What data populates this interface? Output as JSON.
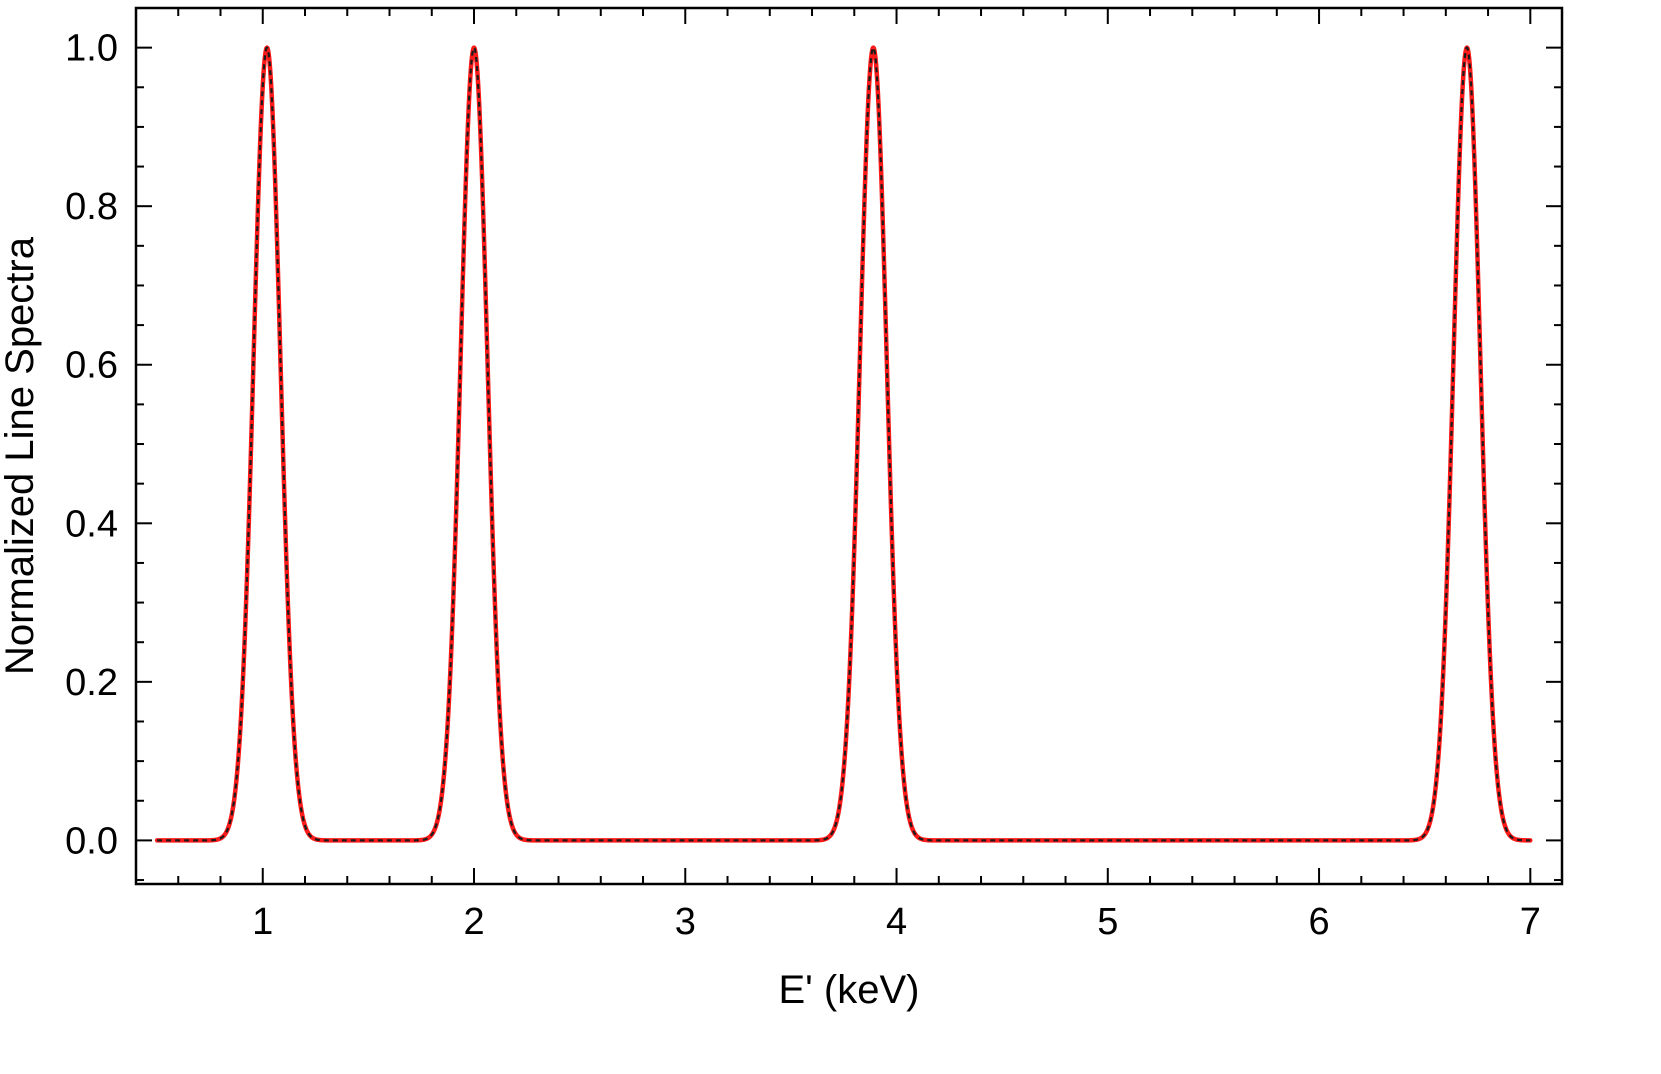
{
  "chart_data": {
    "type": "line",
    "title": "",
    "xlabel": "E' (keV)",
    "ylabel": "Normalized Line Spectra",
    "xlim": [
      0.4,
      7.15
    ],
    "ylim": [
      -0.055,
      1.05
    ],
    "x_ticks": [
      1,
      2,
      3,
      4,
      5,
      6,
      7
    ],
    "x_tick_labels": [
      "1",
      "2",
      "3",
      "4",
      "5",
      "6",
      "7"
    ],
    "y_ticks": [
      0.0,
      0.2,
      0.4,
      0.6,
      0.8,
      1.0
    ],
    "y_tick_labels": [
      "0.0",
      "0.2",
      "0.4",
      "0.6",
      "0.8",
      "1.0"
    ],
    "x_range": [
      0.5,
      7.0
    ],
    "grid": false,
    "legend": "none",
    "peaks": [
      {
        "center": 1.02,
        "fwhm": 0.15,
        "height": 1.0
      },
      {
        "center": 2.0,
        "fwhm": 0.15,
        "height": 1.0
      },
      {
        "center": 3.89,
        "fwhm": 0.15,
        "height": 1.0
      },
      {
        "center": 6.7,
        "fwhm": 0.15,
        "height": 1.0
      }
    ],
    "series": [
      {
        "style": "solid",
        "color": "#ff1a1a"
      },
      {
        "style": "dashed",
        "color": "#1a1a1a"
      }
    ]
  }
}
